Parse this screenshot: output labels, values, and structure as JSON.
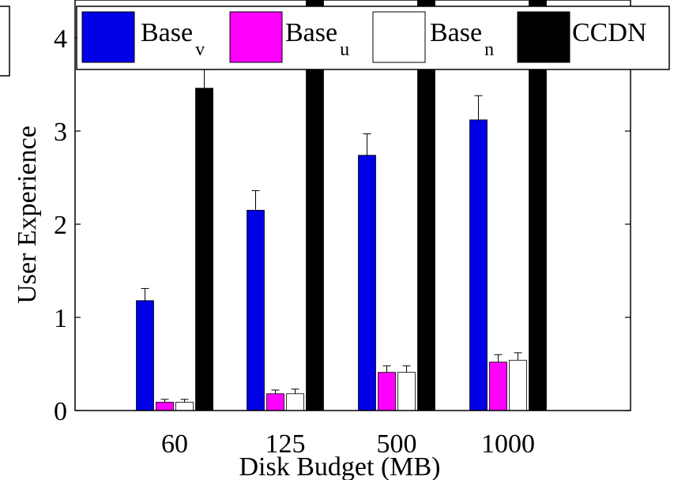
{
  "chart_data": {
    "type": "bar",
    "title": "",
    "xlabel": "Disk Budget (MB)",
    "ylabel": "User Experience",
    "categories": [
      "60",
      "125",
      "500",
      "1000"
    ],
    "ylim": [
      0,
      4.2
    ],
    "yticks": [
      "0",
      "1",
      "2",
      "3",
      "4"
    ],
    "grid": false,
    "legend_position": "top",
    "series": [
      {
        "name": "Base",
        "subscript": "v",
        "color": "#0000e6",
        "values": [
          1.18,
          2.15,
          2.74,
          3.12
        ],
        "errors": [
          0.13,
          0.21,
          0.23,
          0.26
        ]
      },
      {
        "name": "Base",
        "subscript": "u",
        "color": "#ff00ff",
        "values": [
          0.09,
          0.18,
          0.41,
          0.52
        ],
        "errors": [
          0.03,
          0.04,
          0.07,
          0.08
        ]
      },
      {
        "name": "Base",
        "subscript": "n",
        "color": "#ffffff",
        "values": [
          0.09,
          0.18,
          0.41,
          0.54
        ],
        "errors": [
          0.03,
          0.05,
          0.07,
          0.08
        ]
      },
      {
        "name": "CCDN",
        "subscript": "",
        "color": "#000000",
        "values": [
          3.46,
          4.6,
          4.6,
          4.6
        ],
        "errors": [
          0.2,
          0.2,
          0.2,
          0.2
        ]
      }
    ]
  }
}
